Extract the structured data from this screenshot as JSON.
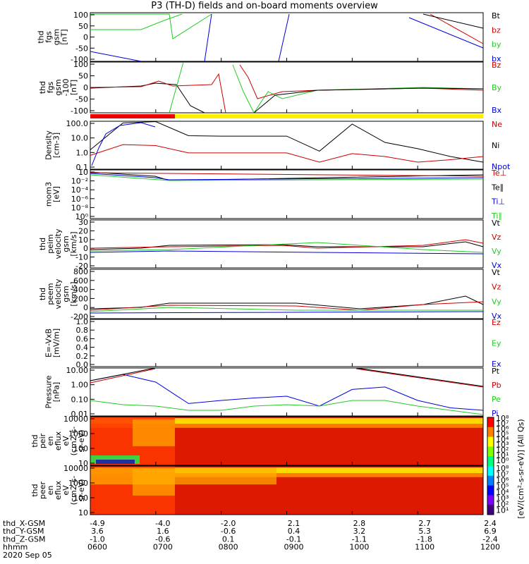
{
  "title": "P3 (TH-D) fields and on-board moments overview",
  "chart_data": {
    "type": "line",
    "panels": [
      {
        "id": "fgs",
        "ylabel": [
          "thd",
          "fgs",
          "gsm",
          "[nT]"
        ],
        "yticks": [
          "100",
          "50",
          "0",
          "-50",
          "-100"
        ],
        "legend": [
          {
            "name": "Bt",
            "color": "#000000"
          },
          {
            "name": "bz",
            "color": "#cc0000"
          },
          {
            "name": "by",
            "color": "#22cc22"
          },
          {
            "name": "bx",
            "color": "#0000dd"
          }
        ]
      },
      {
        "id": "fgs_hi",
        "ylabel": [
          "thd",
          "fgs",
          "gsm",
          "-100",
          "[nT]"
        ],
        "yticks": [
          "100",
          "50",
          "0",
          "-50",
          "-100"
        ],
        "legend": [
          {
            "name": "Bz",
            "color": "#cc0000"
          },
          {
            "name": "By",
            "color": "#22cc22"
          },
          {
            "name": "Bx",
            "color": "#0000dd"
          }
        ]
      },
      {
        "id": "density",
        "ylabel": [
          "Density",
          "[cm-3]"
        ],
        "yticks": [
          "100.0",
          "10.0",
          "1.0",
          "0.1"
        ],
        "scale": "log",
        "legend": [
          {
            "name": "Ne",
            "color": "#cc0000"
          },
          {
            "name": "Ni",
            "color": "#000000"
          },
          {
            "name": "Npot",
            "color": "#0000dd"
          }
        ]
      },
      {
        "id": "temp",
        "ylabel": [
          "mom3",
          "[eV]"
        ],
        "yticks": [
          "10",
          "10⁻²",
          "10⁻⁴",
          "10⁻⁶",
          "10⁻⁸",
          "10⁰"
        ],
        "scale": "log",
        "legend": [
          {
            "name": "Te⊥",
            "color": "#cc0000"
          },
          {
            "name": "Te∥",
            "color": "#000000"
          },
          {
            "name": "Ti⊥",
            "color": "#0000dd"
          },
          {
            "name": "Ti∥",
            "color": "#22cc22"
          }
        ]
      },
      {
        "id": "peim",
        "ylabel": [
          "thd",
          "peim",
          "velocity",
          "gsm",
          "[km/s]"
        ],
        "yticks": [
          "30",
          "20",
          "10",
          "0",
          "-10",
          "-20"
        ],
        "legend": [
          {
            "name": "Vt",
            "color": "#000000"
          },
          {
            "name": "Vz",
            "color": "#cc0000"
          },
          {
            "name": "Vy",
            "color": "#22cc22"
          },
          {
            "name": "Vx",
            "color": "#0000dd"
          }
        ]
      },
      {
        "id": "peem",
        "ylabel": [
          "thd",
          "peem",
          "velocity",
          "gsm",
          "[km/s]"
        ],
        "yticks": [
          "800",
          "600",
          "400",
          "200",
          "0",
          "-200"
        ],
        "legend": [
          {
            "name": "Vt",
            "color": "#000000"
          },
          {
            "name": "Vz",
            "color": "#cc0000"
          },
          {
            "name": "Vy",
            "color": "#22cc22"
          },
          {
            "name": "Vx",
            "color": "#0000dd"
          }
        ]
      },
      {
        "id": "efield",
        "ylabel": [
          "E=-VxB",
          "[mV/m]"
        ],
        "yticks": [
          "1.0",
          "0.8",
          "0.6",
          "0.4",
          "0.2",
          "0.0"
        ],
        "legend": [
          {
            "name": "Ez",
            "color": "#cc0000"
          },
          {
            "name": "Ey",
            "color": "#22cc22"
          },
          {
            "name": "Ex",
            "color": "#0000dd"
          }
        ]
      },
      {
        "id": "pressure",
        "ylabel": [
          "Pressure",
          "[nPa]"
        ],
        "yticks": [
          "10.00",
          "1.00",
          "0.10",
          "0.01"
        ],
        "scale": "log",
        "legend": [
          {
            "name": "Pt",
            "color": "#000000"
          },
          {
            "name": "Pb",
            "color": "#cc0000"
          },
          {
            "name": "Pe",
            "color": "#22cc22"
          },
          {
            "name": "Pi",
            "color": "#0000dd"
          }
        ]
      },
      {
        "id": "peir",
        "ylabel": [
          "thd",
          "peir",
          "en",
          "eflux",
          "eV",
          "(cm2-s-",
          "sr-eV)"
        ],
        "yticks": [
          "10000",
          "1000",
          "100",
          "10"
        ],
        "scale": "log",
        "spectrogram": true
      },
      {
        "id": "peer",
        "ylabel": [
          "thd",
          "peer",
          "en",
          "eflux",
          "eV",
          "(cm2-s-",
          "sr-eV)"
        ],
        "yticks": [
          "10000",
          "1000",
          "100",
          "10"
        ],
        "scale": "log",
        "spectrogram": true
      }
    ],
    "series": [
      {
        "name": "Ni",
        "unit": "cm-3",
        "x": [
          "0600",
          "0630",
          "0700",
          "0730",
          "0800",
          "0830",
          "0900",
          "0930",
          "1000",
          "1030",
          "1100",
          "1130",
          "1200"
        ],
        "values": [
          1.5,
          120,
          150,
          15,
          14,
          14,
          14,
          1.2,
          100,
          5,
          1.8,
          0.5,
          0.2
        ]
      },
      {
        "name": "Ne",
        "unit": "cm-3",
        "x": [
          "0600",
          "0630",
          "0700",
          "0730",
          "0800",
          "0830",
          "0900",
          "0930",
          "1000",
          "1030",
          "1100",
          "1130",
          "1200"
        ],
        "values": [
          0.6,
          3.5,
          3,
          0.9,
          0.9,
          0.9,
          0.9,
          0.2,
          0.8,
          0.5,
          0.2,
          0.3,
          0.5
        ]
      },
      {
        "name": "Pi",
        "unit": "nPa",
        "x": [
          "0600",
          "0630",
          "0700",
          "0730",
          "0800",
          "0830",
          "0900",
          "0930",
          "1000",
          "1030",
          "1100",
          "1130",
          "1200"
        ],
        "values": [
          2.5,
          7,
          2,
          0.06,
          0.1,
          0.15,
          0.2,
          0.04,
          0.6,
          0.9,
          0.1,
          0.03,
          0.02
        ]
      },
      {
        "name": "Pe",
        "unit": "nPa",
        "x": [
          "0600",
          "0630",
          "0700",
          "0730",
          "0800",
          "0830",
          "0900",
          "0930",
          "1000",
          "1030",
          "1100",
          "1130",
          "1200"
        ],
        "values": [
          0.1,
          0.05,
          0.04,
          0.02,
          0.02,
          0.04,
          0.05,
          0.04,
          0.1,
          0.1,
          0.04,
          0.02,
          0.01
        ]
      }
    ],
    "colorbar": {
      "label": "[eV/(cm²-s-sr-eV)] (All Qs)",
      "ticks_top": [
        "10⁸",
        "10⁷",
        "10⁶",
        "10⁵",
        "10⁴",
        "10³",
        "10²",
        "10¹",
        "10⁰"
      ],
      "ticks_bottom": [
        "10⁸",
        "10⁷",
        "10⁶",
        "10⁵",
        "10⁴",
        "10³",
        "10²",
        "10¹"
      ]
    },
    "xaxis": {
      "rows": [
        {
          "label": "thd_X-GSM",
          "values": [
            "-4.9",
            "-4.0",
            "-2.0",
            "2.1",
            "2.8",
            "2.7",
            "2.4"
          ]
        },
        {
          "label": "thd_Y-GSM",
          "values": [
            "3.6",
            "1.6",
            "-0.6",
            "0.4",
            "3.2",
            "5.3",
            "6.9"
          ]
        },
        {
          "label": "thd_Z-GSM",
          "values": [
            "-1.0",
            "-0.6",
            "0.1",
            "-0.1",
            "-1.1",
            "-1.8",
            "-2.4"
          ]
        },
        {
          "label": "hhmm",
          "values": [
            "0600",
            "0700",
            "0800",
            "0900",
            "1000",
            "1100",
            "1200"
          ]
        }
      ],
      "date": "2020 Sep 05",
      "extra_labels": {
        "xlabel_top": "-4.9"
      }
    }
  }
}
